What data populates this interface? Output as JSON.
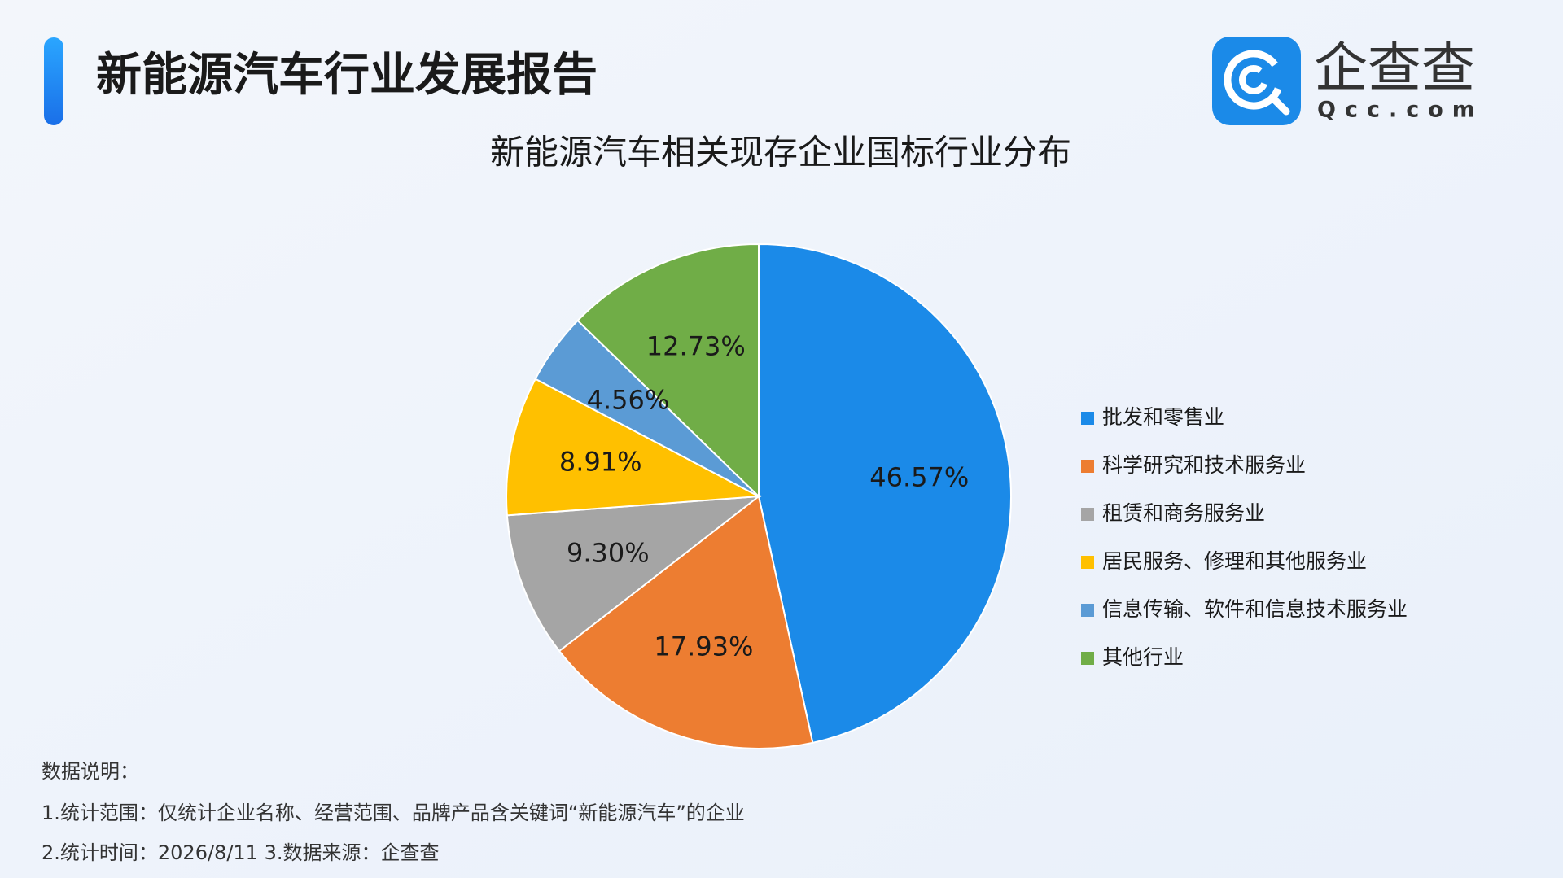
{
  "header": {
    "title": "新能源汽车行业发展报告"
  },
  "logo": {
    "name": "企查查",
    "domain": "Qcc.com"
  },
  "chart_data": {
    "type": "pie",
    "title": "新能源汽车相关现存企业国标行业分布",
    "categories": [
      "批发和零售业",
      "科学研究和技术服务业",
      "租赁和商务服务业",
      "居民服务、修理和其他服务业",
      "信息传输、软件和信息技术服务业",
      "其他行业"
    ],
    "values": [
      46.57,
      17.93,
      9.3,
      8.91,
      4.56,
      12.73
    ],
    "value_labels": [
      "46.57%",
      "17.93%",
      "9.30%",
      "8.91%",
      "4.56%",
      "12.73%"
    ],
    "colors": [
      "#1b8ae8",
      "#ed7d31",
      "#a5a5a5",
      "#ffc000",
      "#5b9bd5",
      "#70ad47"
    ],
    "legend": "right"
  },
  "notes": [
    "数据说明：",
    "1.统计范围：仅统计企业名称、经营范围、品牌产品含关键词“新能源汽车”的企业",
    "2.统计时间：2026/8/11 3.数据来源：企查查"
  ]
}
